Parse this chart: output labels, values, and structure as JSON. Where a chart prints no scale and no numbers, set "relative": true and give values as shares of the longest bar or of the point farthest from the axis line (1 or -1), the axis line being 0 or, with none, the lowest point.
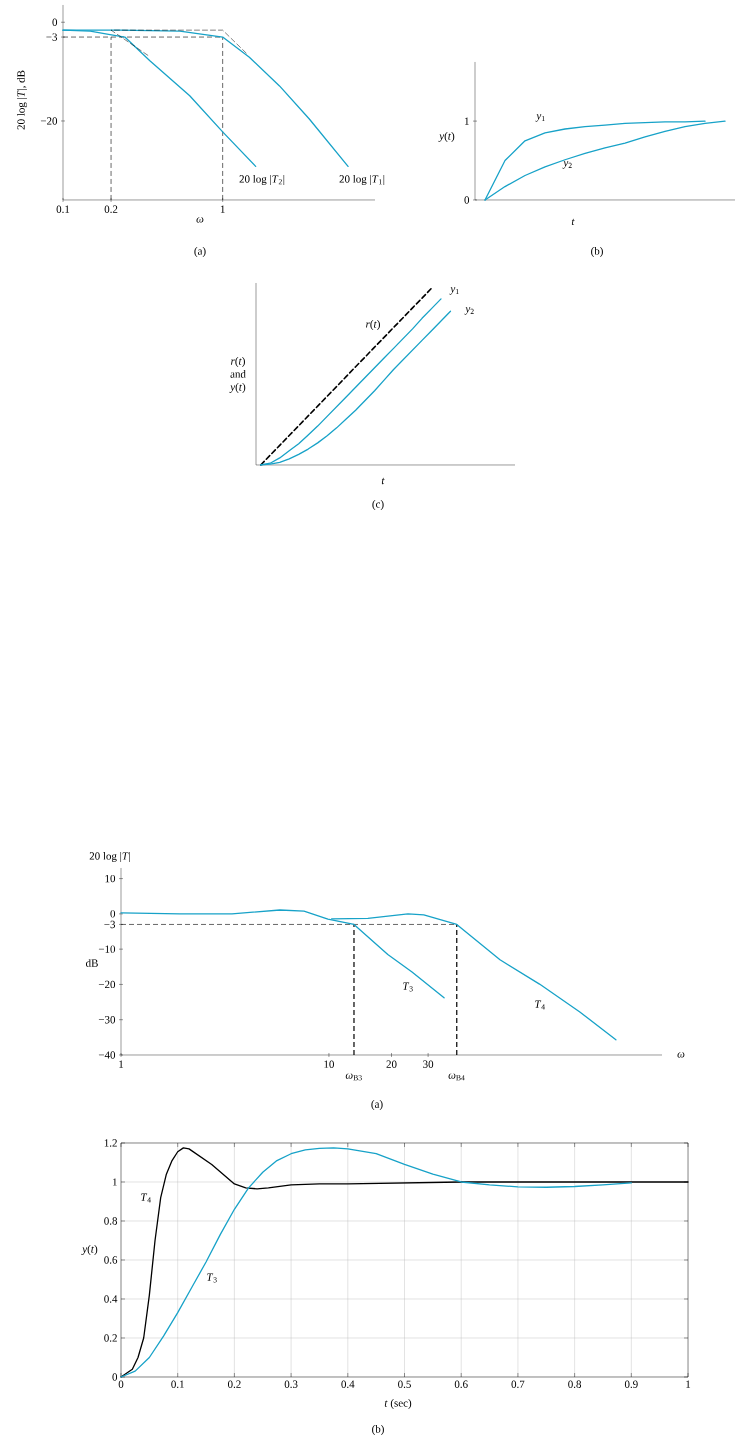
{
  "chart_data": [
    {
      "type": "line",
      "xlabel": "*ω*",
      "ylabel": "20 log |*T*|, dB",
      "annotations": [
        "(a)"
      ],
      "log": "x",
      "xlim": [
        0.1,
        9
      ],
      "ylim": [
        -36,
        3.5
      ],
      "xticks": [
        0.1,
        0.2,
        1
      ],
      "yticks": [
        0,
        {
          "value": -3,
          "label": "−3"
        },
        {
          "value": -20,
          "label": "−20"
        }
      ],
      "ref_lines": [
        {
          "axis": "x",
          "value": 0.2,
          "line_style": "dashed",
          "color": "#000000"
        },
        {
          "axis": "x",
          "value": 1,
          "line_style": "dashed",
          "color": "#000000"
        },
        {
          "axis": "y",
          "value": -3,
          "line_style": "dashed",
          "color": "#000000"
        }
      ],
      "series": [
        {
          "name": "20 log |*T*$_{1}$|",
          "color": "#17a2c8",
          "x": [
            0.1,
            0.227,
            0.539,
            1,
            1.47,
            2.27,
            3.49,
            6.1
          ],
          "values": [
            -1.6,
            -1.6,
            -1.8,
            -3,
            -7.1,
            -12.9,
            -19.6,
            -29.2
          ]
        },
        {
          "name": "20 log |*T*$_{2}$|",
          "color": "#17a2c8",
          "x": [
            0.1,
            0.148,
            0.197,
            0.244,
            0.35,
            0.622,
            1,
            1.61
          ],
          "values": [
            -1.6,
            -1.8,
            -2.5,
            -3,
            -7.8,
            -14.9,
            -22.2,
            -29.2
          ]
        },
        {
          "color": "#000000",
          "line_style": "dashed",
          "x": [
            0.34,
            0.2,
            1,
            1.41
          ],
          "values": [
            -6.7,
            -1.6,
            -1.6,
            -6.3
          ]
        }
      ]
    },
    {
      "type": "line",
      "xlabel": "*t*",
      "ylabel": "*y*(*t*)",
      "annotations": [
        "(b)"
      ],
      "categories": [
        null,
        null,
        null,
        null,
        null,
        null,
        null,
        null,
        null,
        null,
        null,
        null,
        null
      ],
      "ylim": [
        0,
        1.75
      ],
      "yticks": [
        0,
        1
      ],
      "series": [
        {
          "name": "*y*$_{1}$",
          "color": "#17a2c8",
          "values": [
            0,
            0.5,
            0.75,
            0.85,
            0.9,
            0.93,
            0.95,
            0.97,
            0.98,
            0.99,
            0.99,
            1.0,
            null
          ]
        },
        {
          "name": "*y*$_{2}$",
          "color": "#17a2c8",
          "values": [
            0,
            0.17,
            0.31,
            0.42,
            0.51,
            0.59,
            0.66,
            0.72,
            0.8,
            0.87,
            0.93,
            0.97,
            1.0
          ]
        }
      ]
    },
    {
      "type": "line",
      "relative": true,
      "xlabel": "*t*",
      "ylabel": "*r*(*t*) and *y*(*t*)",
      "annotations": [
        "(c)"
      ],
      "categories": [
        null,
        null,
        null,
        null,
        null,
        null,
        null,
        null,
        null,
        null,
        null,
        null,
        null,
        null,
        null,
        null,
        null,
        null,
        null,
        null,
        null
      ],
      "series": [
        {
          "name": "*r*(*t*)",
          "color": "#000000",
          "line_style": "dashed",
          "values": [
            0,
            0.056,
            0.111,
            0.167,
            0.222,
            0.278,
            0.333,
            0.389,
            0.444,
            0.5,
            0.556,
            0.611,
            0.667,
            0.722,
            0.778,
            0.833,
            0.889,
            0.944,
            1.0,
            null,
            null
          ]
        },
        {
          "name": "*y*$_{1}$",
          "color": "#17a2c8",
          "values": [
            0,
            0.01,
            0.04,
            0.08,
            0.12,
            0.17,
            0.22,
            0.275,
            0.33,
            0.385,
            0.44,
            0.495,
            0.55,
            0.605,
            0.66,
            0.715,
            0.77,
            0.83,
            0.885,
            0.94,
            null
          ]
        },
        {
          "name": "*y*$_{2}$",
          "color": "#17a2c8",
          "values": [
            0,
            0.005,
            0.015,
            0.035,
            0.06,
            0.09,
            0.125,
            0.165,
            0.21,
            0.26,
            0.31,
            0.365,
            0.42,
            0.48,
            0.54,
            0.595,
            0.65,
            0.705,
            0.76,
            0.815,
            0.87
          ]
        }
      ]
    },
    {
      "type": "line",
      "xlabel": "*ω*",
      "ylabel": "20 log |*T*|",
      "annotations": [
        "dB",
        "(a)"
      ],
      "log": "x",
      "xlim": [
        1,
        400
      ],
      "ylim": [
        -40,
        13
      ],
      "xticks": [
        1,
        10,
        20,
        30
      ],
      "yticks": [
        10,
        0,
        {
          "value": -3,
          "label": "−3"
        },
        {
          "value": -10,
          "label": "−10"
        },
        {
          "value": -20,
          "label": "−20"
        },
        {
          "value": -30,
          "label": "−30"
        },
        {
          "value": -40,
          "label": "−40"
        }
      ],
      "ref_lines": [
        {
          "axis": "x",
          "value": 13.2,
          "label": "*ω*$_{B3}$",
          "line_style": "dashed",
          "color": "#000000"
        },
        {
          "axis": "x",
          "value": 41.2,
          "label": "*ω*$_{B4}$",
          "line_style": "dashed",
          "color": "#000000"
        },
        {
          "axis": "y",
          "value": -3,
          "line_style": "dashed",
          "color": "#000000"
        }
      ],
      "series": [
        {
          "name": "*T*$_{3}$",
          "color": "#17a2c8",
          "x": [
            1,
            1.92,
            3.42,
            5.81,
            7.59,
            9.89,
            13.2,
            19.2,
            25.1,
            35.8
          ],
          "values": [
            0.3,
            0,
            0,
            1.1,
            0.8,
            -1.5,
            -3,
            -11.5,
            -16.5,
            -23.8
          ]
        },
        {
          "name": "*T*$_{4}$",
          "color": "#17a2c8",
          "x": [
            10.3,
            15.4,
            24,
            28.6,
            41.2,
            66.5,
            103,
            161,
            240
          ],
          "values": [
            -1.4,
            -1.3,
            0,
            -0.3,
            -3,
            -13,
            -19.9,
            -27.8,
            -35.7
          ]
        }
      ]
    },
    {
      "type": "line",
      "xlabel": "*t* (sec)",
      "ylabel": "*y*(*t*)",
      "annotations": [
        "(b)"
      ],
      "xlim": [
        0,
        1
      ],
      "ylim": [
        0,
        1.2
      ],
      "xticks": [
        0,
        0.1,
        0.2,
        0.3,
        0.4,
        0.5,
        0.6,
        0.7,
        0.8,
        0.9,
        1
      ],
      "yticks": [
        0,
        0.2,
        0.4,
        0.6,
        0.8,
        1,
        1.2
      ],
      "grid": true,
      "series": [
        {
          "name": "*T*$_{4}$",
          "color": "#000000",
          "x": [
            0,
            0.02,
            0.03,
            0.04,
            0.05,
            0.06,
            0.07,
            0.08,
            0.09,
            0.1,
            0.11,
            0.12,
            0.14,
            0.16,
            0.18,
            0.2,
            0.22,
            0.24,
            0.26,
            0.3,
            0.35,
            0.4,
            0.5,
            0.6,
            0.8,
            1.0
          ],
          "values": [
            0,
            0.04,
            0.1,
            0.2,
            0.42,
            0.7,
            0.92,
            1.04,
            1.11,
            1.155,
            1.175,
            1.17,
            1.13,
            1.09,
            1.04,
            0.99,
            0.97,
            0.965,
            0.97,
            0.985,
            0.99,
            0.99,
            0.995,
            1.0,
            1.0,
            1.0
          ]
        },
        {
          "name": "*T*$_{3}$",
          "color": "#17a2c8",
          "x": [
            0,
            0.025,
            0.05,
            0.075,
            0.1,
            0.125,
            0.15,
            0.175,
            0.2,
            0.225,
            0.25,
            0.275,
            0.3,
            0.325,
            0.35,
            0.375,
            0.4,
            0.45,
            0.5,
            0.55,
            0.6,
            0.65,
            0.7,
            0.75,
            0.8,
            0.85,
            0.9
          ],
          "values": [
            0,
            0.03,
            0.1,
            0.21,
            0.33,
            0.46,
            0.59,
            0.73,
            0.86,
            0.97,
            1.05,
            1.11,
            1.145,
            1.165,
            1.172,
            1.175,
            1.17,
            1.145,
            1.09,
            1.04,
            1.0,
            0.985,
            0.975,
            0.973,
            0.977,
            0.985,
            0.995
          ]
        }
      ]
    }
  ]
}
